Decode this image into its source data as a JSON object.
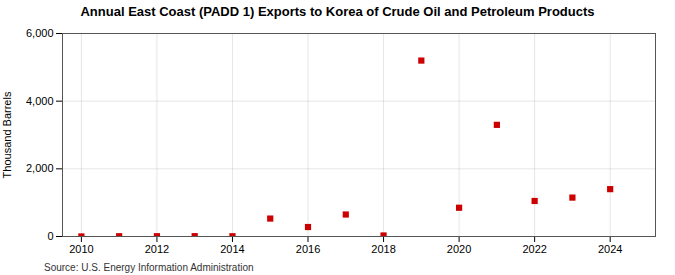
{
  "chart_data": {
    "type": "scatter",
    "title": "Annual East Coast (PADD 1) Exports to Korea of Crude Oil and Petroleum Products",
    "ylabel": "Thousand Barrels",
    "source": "Source: U.S. Energy Information Administration",
    "x": [
      2010,
      2011,
      2012,
      2013,
      2014,
      2015,
      2016,
      2017,
      2018,
      2019,
      2020,
      2021,
      2022,
      2023,
      2024
    ],
    "values": [
      2,
      8,
      8,
      10,
      8,
      530,
      280,
      650,
      30,
      5200,
      850,
      3300,
      1050,
      1150,
      1400
    ],
    "color": "#cc0000",
    "marker": "square",
    "xlim": [
      2009.5,
      2025.2
    ],
    "ylim": [
      0,
      6000
    ],
    "xticks": [
      2010,
      2012,
      2014,
      2016,
      2018,
      2020,
      2022,
      2024
    ],
    "yticks": [
      0,
      {
        "value": 2000,
        "label": "2,000"
      },
      {
        "value": 4000,
        "label": "4,000"
      },
      {
        "value": 6000,
        "label": "6,000"
      }
    ],
    "grid": true
  }
}
